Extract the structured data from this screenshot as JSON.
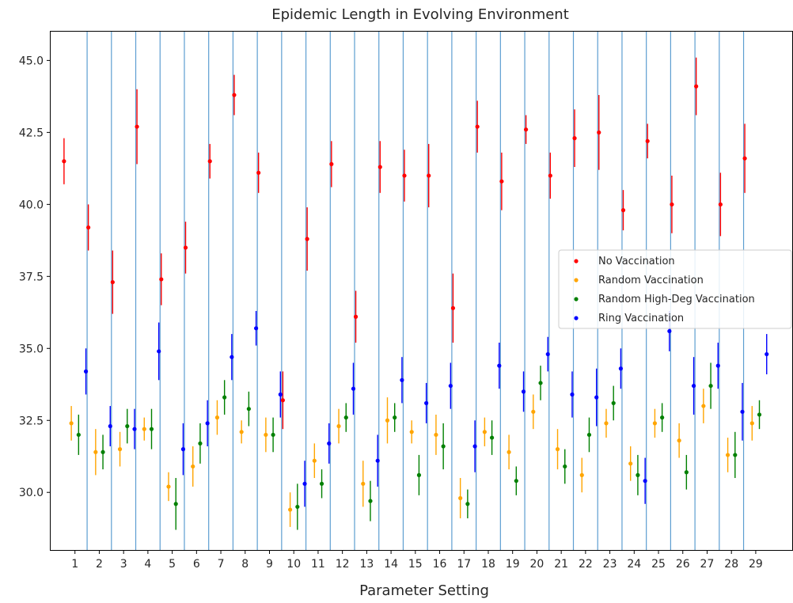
{
  "chart_data": {
    "type": "scatter",
    "title": "Epidemic Length in Evolving Environment",
    "xlabel": "Parameter Setting",
    "ylabel": "",
    "ylim": [
      28.0,
      46.0
    ],
    "xlim": [
      0.0,
      30.5
    ],
    "grid": false,
    "legend_placement": "center-right",
    "x_ticks": [
      1,
      2,
      3,
      4,
      5,
      6,
      7,
      8,
      9,
      10,
      11,
      12,
      13,
      14,
      15,
      16,
      17,
      18,
      19,
      20,
      21,
      22,
      23,
      24,
      25,
      26,
      27,
      28,
      29
    ],
    "y_ticks": [
      "30.0",
      "32.5",
      "35.0",
      "37.5",
      "40.0",
      "42.5",
      "45.0"
    ],
    "separator_lines": [
      1.5,
      2.5,
      3.5,
      4.5,
      5.5,
      6.5,
      7.5,
      8.5,
      9.5,
      10.5,
      11.5,
      12.5,
      13.5,
      14.5,
      15.5,
      16.5,
      17.5,
      18.5,
      19.5,
      20.5,
      21.5,
      22.5,
      23.5,
      24.5,
      25.5,
      26.5,
      27.5,
      28.5
    ],
    "separator_color": "#5d9ed1",
    "series_offsets": [
      -0.45,
      -0.15,
      0.15,
      0.45
    ],
    "series": [
      {
        "name": "No Vaccination",
        "color": "#ff0000",
        "values": [
          41.5,
          39.2,
          37.3,
          42.7,
          37.4,
          38.5,
          41.5,
          43.8,
          41.1,
          33.2,
          38.8,
          41.4,
          36.1,
          41.3,
          41.0,
          41.0,
          36.4,
          42.7,
          40.8,
          42.6,
          41.0,
          42.3,
          42.5,
          39.8,
          42.2,
          40.0,
          44.1,
          40.0,
          41.6
        ],
        "errors": [
          0.8,
          0.8,
          1.1,
          1.3,
          0.9,
          0.9,
          0.6,
          0.7,
          0.7,
          1.0,
          1.1,
          0.8,
          0.9,
          0.9,
          0.9,
          1.1,
          1.2,
          0.9,
          1.0,
          0.5,
          0.8,
          1.0,
          1.3,
          0.7,
          0.6,
          1.0,
          1.0,
          1.1,
          1.2
        ]
      },
      {
        "name": "Random Vaccination",
        "color": "#ffa500",
        "values": [
          32.4,
          31.4,
          31.5,
          32.2,
          30.2,
          30.9,
          32.6,
          32.1,
          32.0,
          29.4,
          31.1,
          32.3,
          30.3,
          32.5,
          32.1,
          32.0,
          29.8,
          32.1,
          31.4,
          32.8,
          31.5,
          30.6,
          32.4,
          31.0,
          32.4,
          31.8,
          33.0,
          31.3,
          32.4
        ],
        "errors": [
          0.6,
          0.8,
          0.6,
          0.4,
          0.5,
          0.7,
          0.6,
          0.4,
          0.6,
          0.6,
          0.6,
          0.6,
          0.8,
          0.8,
          0.4,
          0.7,
          0.7,
          0.5,
          0.6,
          0.6,
          0.7,
          0.6,
          0.5,
          0.6,
          0.5,
          0.6,
          0.6,
          0.6,
          0.6
        ]
      },
      {
        "name": "Random High-Deg Vaccination",
        "color": "#008000",
        "values": [
          32.0,
          31.4,
          32.3,
          32.2,
          29.6,
          31.7,
          33.3,
          32.9,
          32.0,
          29.5,
          30.3,
          32.6,
          29.7,
          32.6,
          30.6,
          31.6,
          29.6,
          31.9,
          30.4,
          33.8,
          30.9,
          32.0,
          33.1,
          30.6,
          32.6,
          30.7,
          33.7,
          31.3,
          32.7
        ],
        "errors": [
          0.7,
          0.6,
          0.6,
          0.7,
          0.9,
          0.7,
          0.6,
          0.6,
          0.6,
          0.8,
          0.5,
          0.5,
          0.7,
          0.5,
          0.7,
          0.8,
          0.5,
          0.6,
          0.5,
          0.6,
          0.6,
          0.6,
          0.6,
          0.7,
          0.5,
          0.6,
          0.8,
          0.8,
          0.5
        ]
      },
      {
        "name": "Ring Vaccination",
        "color": "#0000ff",
        "values": [
          34.2,
          32.3,
          32.2,
          34.9,
          31.5,
          32.4,
          34.7,
          35.7,
          33.4,
          30.3,
          31.7,
          33.6,
          31.1,
          33.9,
          33.1,
          33.7,
          31.6,
          34.4,
          33.5,
          34.8,
          33.4,
          33.3,
          34.3,
          30.4,
          35.6,
          33.7,
          34.4,
          32.8,
          34.8
        ],
        "errors": [
          0.8,
          0.7,
          0.7,
          1.0,
          0.9,
          0.8,
          0.8,
          0.6,
          0.8,
          0.8,
          0.7,
          0.9,
          0.9,
          0.8,
          0.7,
          0.8,
          0.9,
          0.8,
          0.7,
          0.6,
          0.8,
          1.0,
          0.7,
          0.8,
          0.7,
          1.0,
          0.8,
          1.0,
          0.7
        ]
      }
    ]
  }
}
